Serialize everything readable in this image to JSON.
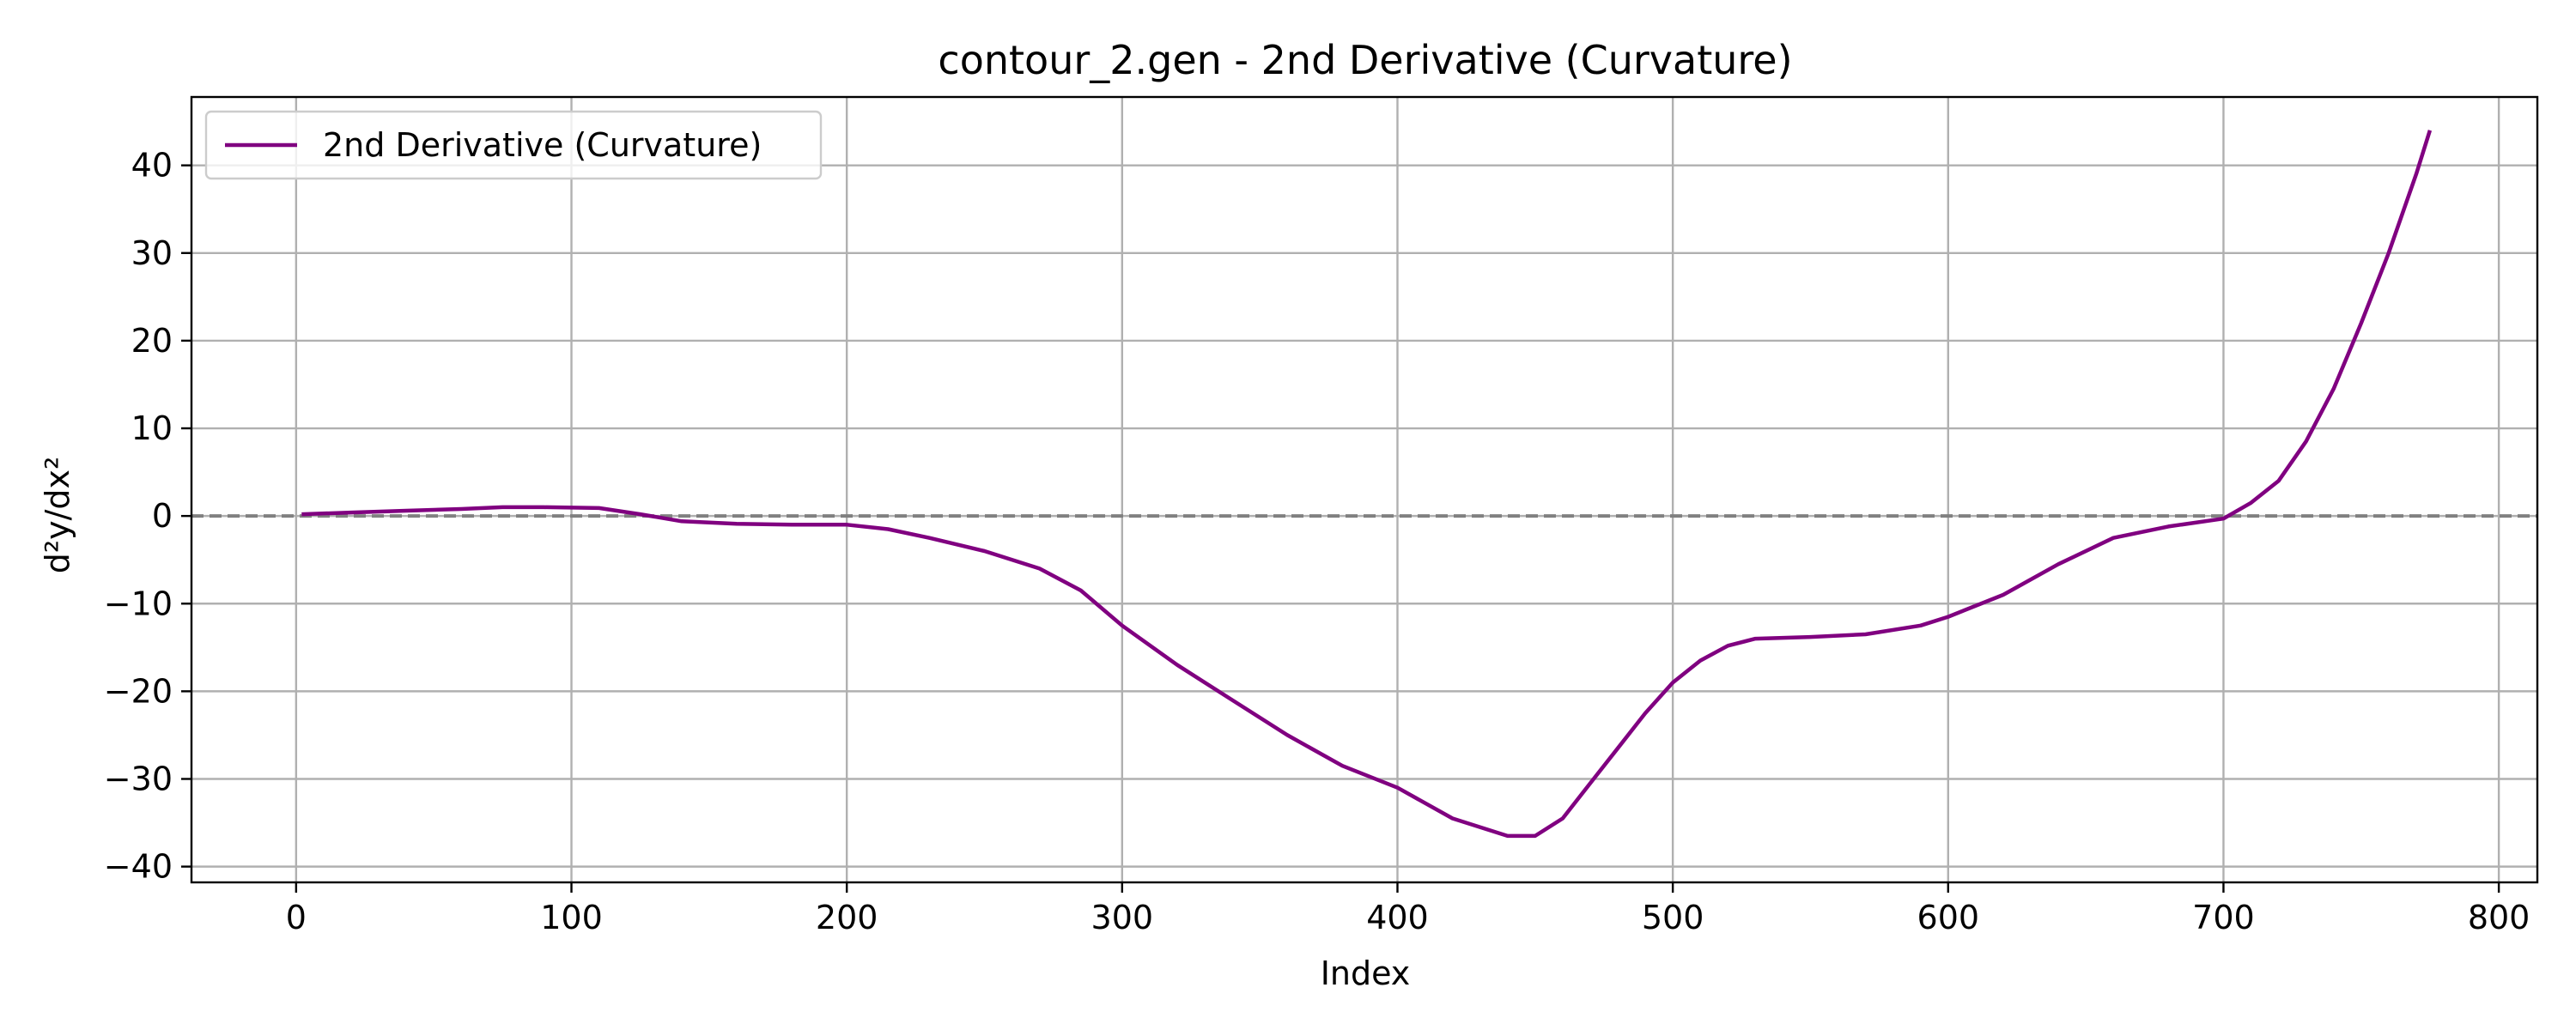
{
  "chart_data": {
    "type": "line",
    "title": "contour_2.gen - 2nd Derivative (Curvature)",
    "xlabel": "Index",
    "ylabel": "d²y/dx²",
    "xlim": [
      -38,
      814
    ],
    "ylim": [
      -41.8,
      47.8
    ],
    "xticks": [
      0,
      100,
      200,
      300,
      400,
      500,
      600,
      700,
      800
    ],
    "yticks": [
      -40,
      -30,
      -20,
      -10,
      0,
      10,
      20,
      30,
      40
    ],
    "grid": true,
    "legend_position": "top-left",
    "reference_line": {
      "y": 0,
      "style": "dashed",
      "color": "#808080"
    },
    "series": [
      {
        "name": "2nd Derivative (Curvature)",
        "color": "#800080",
        "x": [
          2,
          20,
          40,
          60,
          75,
          90,
          110,
          125,
          140,
          160,
          180,
          200,
          215,
          230,
          250,
          270,
          285,
          300,
          320,
          340,
          360,
          380,
          400,
          420,
          440,
          450,
          460,
          470,
          480,
          490,
          500,
          510,
          520,
          530,
          550,
          570,
          590,
          600,
          620,
          640,
          660,
          680,
          700,
          710,
          720,
          730,
          740,
          750,
          760,
          770,
          775
        ],
        "y": [
          0.2,
          0.4,
          0.6,
          0.8,
          1.0,
          1.0,
          0.9,
          0.2,
          -0.6,
          -0.9,
          -1.0,
          -1.0,
          -1.5,
          -2.5,
          -4.0,
          -6.0,
          -8.5,
          -12.5,
          -17.0,
          -21.0,
          -25.0,
          -28.5,
          -31.0,
          -34.5,
          -36.5,
          -36.5,
          -34.5,
          -30.5,
          -26.5,
          -22.5,
          -19.0,
          -16.5,
          -14.8,
          -14.0,
          -13.8,
          -13.5,
          -12.5,
          -11.5,
          -9.0,
          -5.5,
          -2.5,
          -1.2,
          -0.3,
          1.5,
          4.0,
          8.5,
          14.5,
          22.0,
          30.0,
          39.0,
          44.0
        ]
      }
    ]
  }
}
